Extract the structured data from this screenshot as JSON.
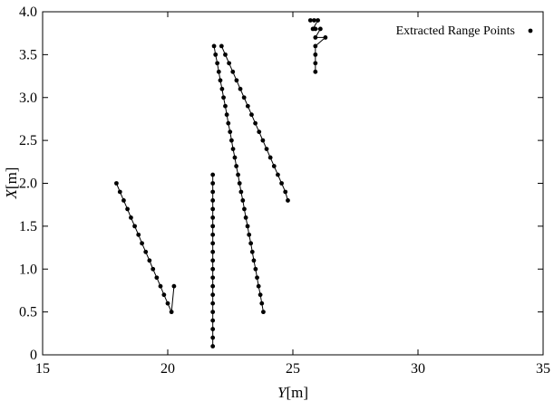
{
  "chart_data": {
    "type": "scatter",
    "xlabel_var": "Y",
    "xlabel_unit": "[m]",
    "ylabel_var": "X",
    "ylabel_unit": "[m]",
    "xlim": [
      15,
      35
    ],
    "ylim": [
      0,
      4.0
    ],
    "xticks": [
      15,
      20,
      25,
      30,
      35
    ],
    "xtick_labels": [
      "15",
      "20",
      "25",
      "30",
      "35"
    ],
    "yticks": [
      0,
      0.5,
      1.0,
      1.5,
      2.0,
      2.5,
      3.0,
      3.5,
      4.0
    ],
    "ytick_labels": [
      "0",
      "0.5",
      "1.0",
      "1.5",
      "2.0",
      "2.5",
      "3.0",
      "3.5",
      "4.0"
    ],
    "grid": false,
    "legend_placement": "top-right",
    "point_color": "#000000",
    "series": [
      {
        "name": "Extracted Range Points",
        "segments": [
          [
            [
              17.95,
              2.0
            ],
            [
              18.09,
              1.9
            ],
            [
              18.24,
              1.8
            ],
            [
              18.39,
              1.7
            ],
            [
              18.53,
              1.6
            ],
            [
              18.68,
              1.5
            ],
            [
              18.83,
              1.4
            ],
            [
              18.97,
              1.3
            ],
            [
              19.12,
              1.2
            ],
            [
              19.27,
              1.1
            ],
            [
              19.41,
              1.0
            ],
            [
              19.56,
              0.9
            ],
            [
              19.71,
              0.8
            ],
            [
              19.85,
              0.7
            ],
            [
              20.0,
              0.6
            ],
            [
              20.15,
              0.5
            ],
            [
              20.25,
              0.8
            ]
          ],
          [
            [
              21.8,
              0.1
            ],
            [
              21.8,
              0.2
            ],
            [
              21.8,
              0.3
            ],
            [
              21.8,
              0.4
            ],
            [
              21.8,
              0.5
            ],
            [
              21.8,
              0.6
            ],
            [
              21.8,
              0.7
            ],
            [
              21.8,
              0.8
            ],
            [
              21.8,
              0.9
            ],
            [
              21.8,
              1.0
            ],
            [
              21.8,
              1.1
            ],
            [
              21.8,
              1.2
            ],
            [
              21.8,
              1.3
            ],
            [
              21.8,
              1.4
            ],
            [
              21.8,
              1.5
            ],
            [
              21.8,
              1.6
            ],
            [
              21.8,
              1.7
            ],
            [
              21.8,
              1.8
            ],
            [
              21.8,
              1.9
            ],
            [
              21.8,
              2.0
            ],
            [
              21.8,
              2.1
            ]
          ],
          [
            [
              21.85,
              3.6
            ],
            [
              21.91,
              3.5
            ],
            [
              21.98,
              3.4
            ],
            [
              22.04,
              3.3
            ],
            [
              22.1,
              3.2
            ],
            [
              22.17,
              3.1
            ],
            [
              22.23,
              3.0
            ],
            [
              22.3,
              2.9
            ],
            [
              22.36,
              2.8
            ],
            [
              22.42,
              2.7
            ],
            [
              22.49,
              2.6
            ],
            [
              22.55,
              2.5
            ],
            [
              22.61,
              2.4
            ],
            [
              22.68,
              2.3
            ],
            [
              22.74,
              2.2
            ],
            [
              22.81,
              2.1
            ],
            [
              22.87,
              2.0
            ],
            [
              22.93,
              1.9
            ],
            [
              23.0,
              1.8
            ],
            [
              23.06,
              1.7
            ],
            [
              23.12,
              1.6
            ],
            [
              23.19,
              1.5
            ],
            [
              23.25,
              1.4
            ],
            [
              23.32,
              1.3
            ],
            [
              23.38,
              1.2
            ],
            [
              23.44,
              1.1
            ],
            [
              23.51,
              1.0
            ],
            [
              23.57,
              0.9
            ],
            [
              23.63,
              0.8
            ],
            [
              23.7,
              0.7
            ],
            [
              23.76,
              0.6
            ],
            [
              23.82,
              0.5
            ]
          ],
          [
            [
              22.15,
              3.6
            ],
            [
              22.3,
              3.5
            ],
            [
              22.45,
              3.4
            ],
            [
              22.6,
              3.3
            ],
            [
              22.75,
              3.2
            ],
            [
              22.9,
              3.1
            ],
            [
              23.05,
              3.0
            ],
            [
              23.2,
              2.9
            ],
            [
              23.35,
              2.8
            ],
            [
              23.5,
              2.7
            ],
            [
              23.65,
              2.6
            ],
            [
              23.8,
              2.5
            ],
            [
              23.95,
              2.4
            ],
            [
              24.1,
              2.3
            ],
            [
              24.25,
              2.2
            ],
            [
              24.4,
              2.1
            ],
            [
              24.55,
              2.0
            ],
            [
              24.7,
              1.9
            ],
            [
              24.8,
              1.8
            ]
          ],
          [
            [
              25.7,
              3.9
            ],
            [
              25.85,
              3.9
            ],
            [
              26.0,
              3.9
            ],
            [
              25.8,
              3.8
            ],
            [
              25.9,
              3.8
            ],
            [
              26.1,
              3.8
            ],
            [
              25.9,
              3.7
            ],
            [
              26.3,
              3.7
            ],
            [
              25.9,
              3.6
            ],
            [
              25.9,
              3.5
            ],
            [
              25.9,
              3.4
            ],
            [
              25.9,
              3.3
            ]
          ]
        ]
      }
    ]
  }
}
